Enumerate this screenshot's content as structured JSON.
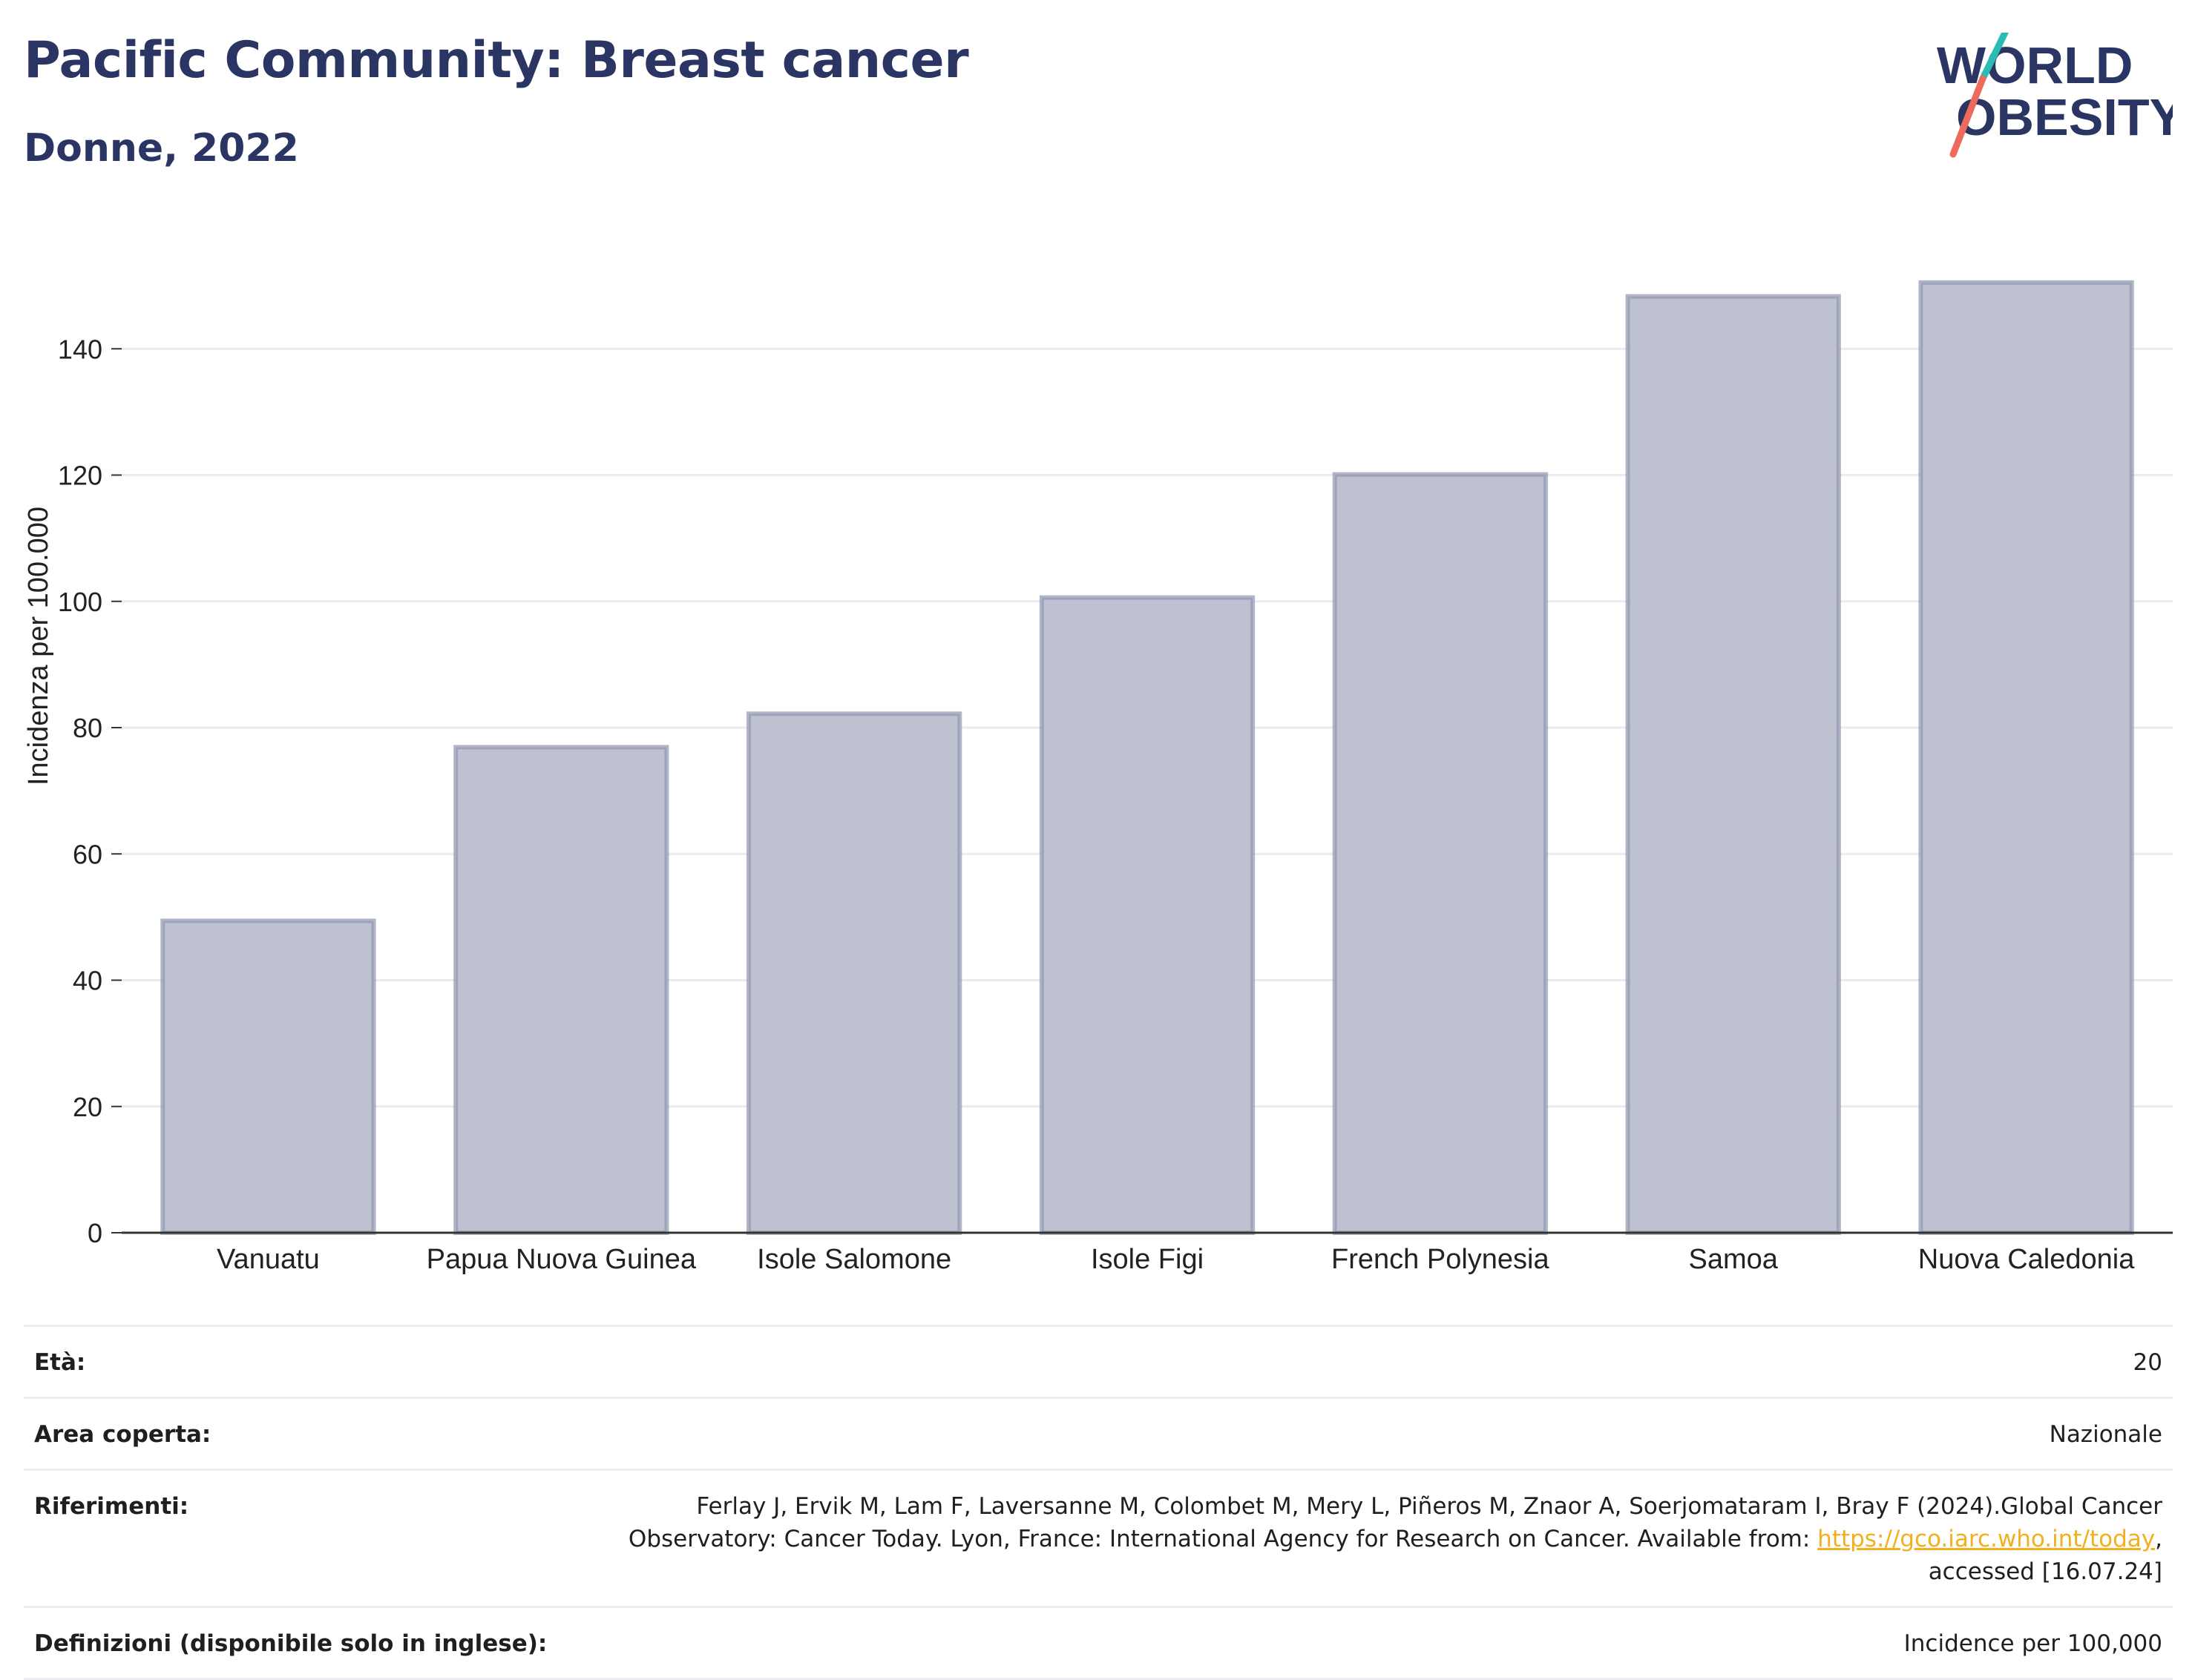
{
  "header": {
    "title": "Pacific Community: Breast cancer",
    "subtitle": "Donne, 2022"
  },
  "logo": {
    "line1": "WORLD",
    "line2": "OBESITY",
    "colors": {
      "text": "#2b3564",
      "slash_top": "#2bbbb5",
      "slash_bottom": "#ee6a5a"
    }
  },
  "chart_data": {
    "type": "bar",
    "title": "Pacific Community: Breast cancer",
    "subtitle": "Donne, 2022",
    "categories": [
      "Vanuatu",
      "Papua Nuova Guinea",
      "Isole Salomone",
      "Isole Figi",
      "French Polynesia",
      "Samoa",
      "Nuova Caledonia"
    ],
    "values": [
      49.4,
      76.9,
      82.2,
      100.6,
      120.1,
      148.3,
      150.5
    ],
    "ylabel": "Incidenza per 100.000",
    "xlabel": "",
    "ylim": [
      0,
      160
    ],
    "yticks": [
      0,
      20,
      40,
      60,
      80,
      100,
      120,
      140
    ],
    "grid": true,
    "legend": "none",
    "colors": {
      "bar_fill": "#bec2d0",
      "bar_stroke": "#9096b0",
      "grid": "#ebebef",
      "axis": "#333333"
    }
  },
  "info": {
    "rows": [
      {
        "label": "Età:",
        "value": "20"
      },
      {
        "label": "Area coperta:",
        "value": "Nazionale"
      },
      {
        "label": "Riferimenti:",
        "value_pre": "Ferlay J, Ervik M, Lam F, Laversanne M, Colombet M, Mery L, Piñeros M, Znaor A, Soerjomataram I, Bray F (2024).Global Cancer Observatory: Cancer Today. Lyon, France: International Agency for Research on Cancer. Available from: ",
        "link": "https://gco.iarc.who.int/today",
        "value_post": ", accessed [16.07.24]"
      },
      {
        "label": "Definizioni (disponibile solo in inglese):",
        "value": "Incidence per 100,000"
      }
    ]
  }
}
